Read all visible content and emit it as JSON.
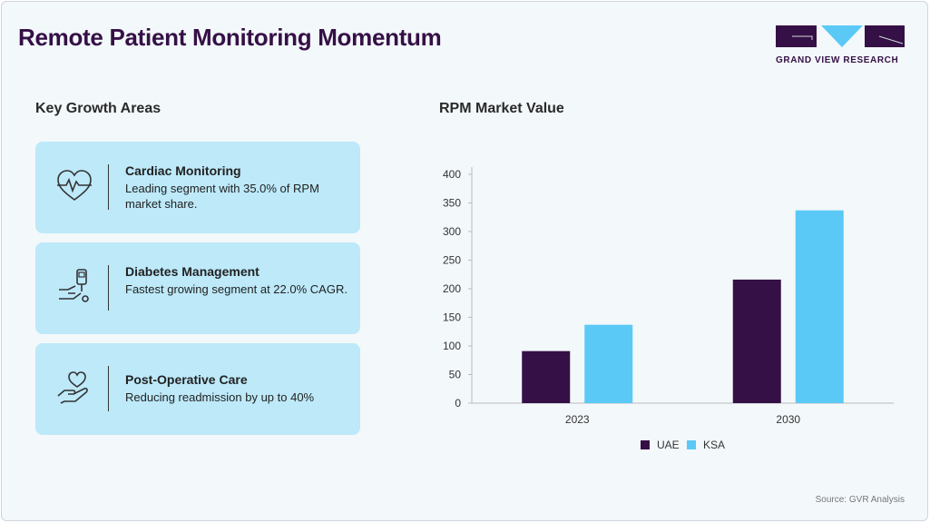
{
  "header": {
    "title": "Remote Patient Monitoring Momentum",
    "logo_text": "GRAND VIEW RESEARCH"
  },
  "left": {
    "heading": "Key Growth Areas",
    "cards": [
      {
        "icon": "heart-pulse-icon",
        "title": "Cardiac Monitoring",
        "desc": "Leading segment with 35.0% of RPM market share."
      },
      {
        "icon": "glucose-meter-hand-icon",
        "title": "Diabetes Management",
        "desc": "Fastest growing segment at 22.0% CAGR."
      },
      {
        "icon": "heart-in-hand-icon",
        "title": "Post-Operative Care",
        "desc": "Reducing readmission by up to 40%"
      }
    ]
  },
  "colors": {
    "UAE": "#351046",
    "KSA": "#5bc9f5"
  },
  "chart_data": {
    "type": "bar",
    "title": "RPM Market Value",
    "xlabel": "",
    "ylabel": "",
    "categories": [
      "2023",
      "2030"
    ],
    "series": [
      {
        "name": "UAE",
        "values": [
          91,
          216
        ]
      },
      {
        "name": "KSA",
        "values": [
          137,
          337
        ]
      }
    ],
    "ylim": [
      0,
      400
    ],
    "yticks": [
      0,
      50,
      100,
      150,
      200,
      250,
      300,
      350,
      400
    ],
    "grid": false,
    "legend": "bottom"
  },
  "footer": {
    "source": "Source: GVR Analysis"
  }
}
